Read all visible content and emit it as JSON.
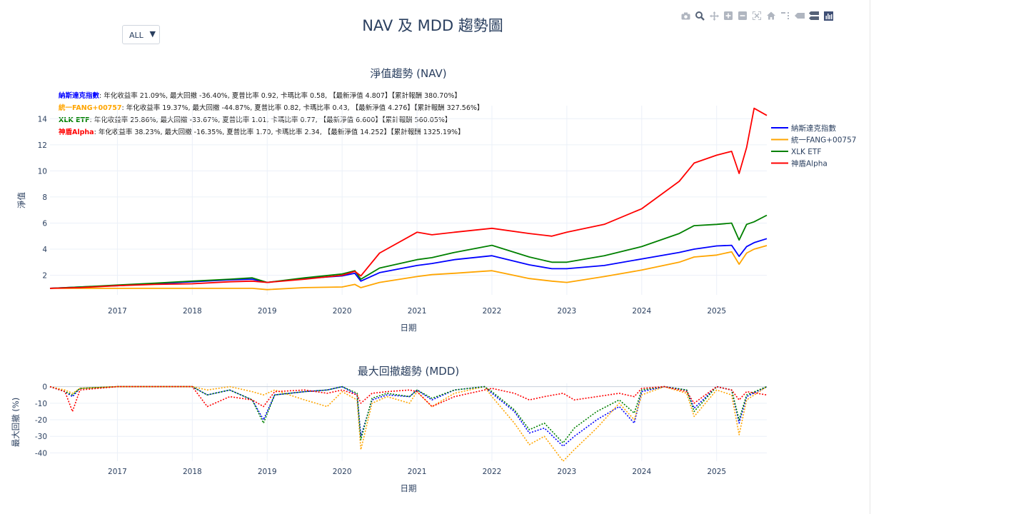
{
  "page": {
    "title": "NAV 及 MDD 趨勢圖",
    "dropdown_value": "ALL",
    "dropdown_arrow": "▼"
  },
  "toolbar": {
    "icons": [
      "camera-icon",
      "zoom-icon",
      "pan-icon",
      "zoom-in-icon",
      "zoom-out-icon",
      "autoscale-icon",
      "reset-axes-icon",
      "spike-lines-icon",
      "hover-closest-icon",
      "hover-compare-icon",
      "plotly-logo-icon"
    ]
  },
  "stats": [
    {
      "name": "納斯達克指數",
      "color": "#0000ff",
      "text": ": 年化收益率 21.09%, 最大回撤 -36.40%, 夏普比率 0.92, 卡瑪比率 0.58, 【最新淨值 4.807】【累計報酬 380.70%】"
    },
    {
      "name": "統一FANG+00757",
      "color": "#ffa500",
      "text": ": 年化收益率 19.37%, 最大回撤 -44.87%, 夏普比率 0.82, 卡瑪比率 0.43, 【最新淨值 4.276】【累計報酬 327.56%】"
    },
    {
      "name": "XLK ETF",
      "color": "#008000",
      "text": ": 年化收益率 25.86%, 最大回撤 -33.67%, 夏普比率 1.01, 卡瑪比率 0.77, 【最新淨值 6.600】【累計報酬 560.05%】"
    },
    {
      "name": "神盾Alpha",
      "color": "#ff0000",
      "text": ": 年化收益率 38.23%, 最大回撤 -16.35%, 夏普比率 1.70, 卡瑪比率 2.34, 【最新淨值 14.252】【累計報酬 1325.19%】"
    }
  ],
  "chart_data": [
    {
      "type": "line",
      "title": "淨值趨勢 (NAV)",
      "xlabel": "日期",
      "ylabel": "淨值",
      "xlim": [
        2016.1,
        2025.67
      ],
      "ylim": [
        0.5,
        15
      ],
      "x_ticks": [
        "2017",
        "2018",
        "2019",
        "2020",
        "2021",
        "2022",
        "2023",
        "2024",
        "2025"
      ],
      "y_ticks": [
        2,
        4,
        6,
        8,
        10,
        12,
        14
      ],
      "grid": true,
      "legend_position": "right",
      "x": [
        2016.1,
        2016.5,
        2017.0,
        2017.5,
        2018.0,
        2018.5,
        2018.8,
        2019.0,
        2019.5,
        2020.0,
        2020.17,
        2020.25,
        2020.5,
        2021.0,
        2021.2,
        2021.5,
        2022.0,
        2022.5,
        2022.8,
        2023.0,
        2023.5,
        2024.0,
        2024.5,
        2024.7,
        2025.0,
        2025.2,
        2025.3,
        2025.4,
        2025.5,
        2025.67
      ],
      "series": [
        {
          "name": "納斯達克指數",
          "color": "#0000ff",
          "values": [
            1.0,
            1.1,
            1.2,
            1.35,
            1.5,
            1.65,
            1.7,
            1.45,
            1.75,
            1.95,
            2.15,
            1.55,
            2.2,
            2.75,
            2.9,
            3.2,
            3.5,
            2.8,
            2.5,
            2.5,
            2.75,
            3.25,
            3.75,
            4.0,
            4.25,
            4.3,
            3.45,
            4.2,
            4.5,
            4.807
          ]
        },
        {
          "name": "統一FANG+00757",
          "color": "#ffa500",
          "values": [
            1.0,
            1.0,
            1.0,
            1.0,
            1.0,
            1.0,
            1.0,
            0.9,
            1.05,
            1.1,
            1.3,
            1.05,
            1.45,
            1.9,
            2.05,
            2.15,
            2.35,
            1.75,
            1.55,
            1.45,
            1.9,
            2.4,
            3.0,
            3.4,
            3.55,
            3.8,
            2.85,
            3.7,
            4.0,
            4.276
          ]
        },
        {
          "name": "XLK ETF",
          "color": "#008000",
          "values": [
            1.0,
            1.1,
            1.25,
            1.4,
            1.55,
            1.7,
            1.8,
            1.45,
            1.8,
            2.1,
            2.35,
            1.7,
            2.55,
            3.2,
            3.35,
            3.75,
            4.3,
            3.4,
            3.0,
            3.0,
            3.5,
            4.2,
            5.2,
            5.8,
            5.9,
            6.0,
            4.7,
            5.9,
            6.1,
            6.6
          ]
        },
        {
          "name": "神盾Alpha",
          "color": "#ff0000",
          "values": [
            1.0,
            1.05,
            1.2,
            1.3,
            1.35,
            1.5,
            1.55,
            1.45,
            1.7,
            2.0,
            2.3,
            1.95,
            3.7,
            5.3,
            5.1,
            5.3,
            5.6,
            5.2,
            5.0,
            5.3,
            5.9,
            7.1,
            9.2,
            10.6,
            11.2,
            11.5,
            9.8,
            11.8,
            14.8,
            14.252
          ]
        }
      ]
    },
    {
      "type": "line",
      "title": "最大回撤趨勢 (MDD)",
      "xlabel": "日期",
      "ylabel": "最大回撤 (%)",
      "xlim": [
        2016.1,
        2025.67
      ],
      "ylim": [
        -45,
        2
      ],
      "x_ticks": [
        "2017",
        "2018",
        "2019",
        "2020",
        "2021",
        "2022",
        "2023",
        "2024",
        "2025"
      ],
      "y_ticks": [
        0,
        -10,
        -20,
        -30,
        -40
      ],
      "grid": true,
      "line_style": "dotted",
      "x": [
        2016.1,
        2016.3,
        2016.4,
        2016.5,
        2017.0,
        2017.5,
        2018.0,
        2018.2,
        2018.5,
        2018.8,
        2018.95,
        2019.1,
        2019.5,
        2019.8,
        2020.0,
        2020.2,
        2020.25,
        2020.4,
        2020.6,
        2020.9,
        2021.0,
        2021.2,
        2021.5,
        2021.9,
        2022.0,
        2022.3,
        2022.5,
        2022.7,
        2022.95,
        2023.1,
        2023.4,
        2023.7,
        2023.9,
        2024.0,
        2024.3,
        2024.6,
        2024.7,
        2025.0,
        2025.2,
        2025.3,
        2025.4,
        2025.67
      ],
      "series": [
        {
          "name": "納斯達克指數",
          "color": "#0000ff",
          "values": [
            0,
            -3,
            -6,
            -1,
            0,
            0,
            0,
            -5,
            -2,
            -8,
            -20,
            -5,
            -3,
            -2,
            0,
            -5,
            -30,
            -8,
            -5,
            -6,
            -2,
            -8,
            -2,
            0,
            -4,
            -15,
            -28,
            -25,
            -36,
            -30,
            -20,
            -12,
            -22,
            -3,
            0,
            -2,
            -13,
            0,
            -2,
            -22,
            -6,
            0
          ]
        },
        {
          "name": "統一FANG+00757",
          "color": "#ffa500",
          "values": [
            0,
            -2,
            -4,
            -1,
            0,
            0,
            0,
            -2,
            0,
            -3,
            -5,
            -2,
            -8,
            -12,
            -3,
            -8,
            -38,
            -10,
            -6,
            -10,
            -3,
            -12,
            -4,
            0,
            -6,
            -22,
            -35,
            -30,
            -45,
            -38,
            -25,
            -10,
            -20,
            -5,
            0,
            -4,
            -18,
            -2,
            -5,
            -29,
            -8,
            0
          ]
        },
        {
          "name": "XLK ETF",
          "color": "#008000",
          "values": [
            0,
            -3,
            -5,
            -1,
            0,
            0,
            0,
            -5,
            -2,
            -8,
            -22,
            -5,
            -3,
            -2,
            0,
            -4,
            -32,
            -7,
            -4,
            -6,
            -2,
            -7,
            -2,
            0,
            -3,
            -14,
            -26,
            -22,
            -34,
            -25,
            -15,
            -8,
            -16,
            -2,
            0,
            -2,
            -15,
            0,
            -2,
            -20,
            -5,
            0
          ]
        },
        {
          "name": "神盾Alpha",
          "color": "#ff0000",
          "values": [
            0,
            -3,
            -15,
            -2,
            0,
            0,
            0,
            -12,
            -6,
            -8,
            -12,
            -3,
            -2,
            -4,
            -2,
            -5,
            -10,
            -4,
            -3,
            -2,
            -3,
            -12,
            -6,
            -2,
            -1,
            -4,
            -8,
            -6,
            -4,
            -8,
            -6,
            -4,
            -6,
            -1,
            0,
            -3,
            -10,
            0,
            -2,
            -8,
            -3,
            -5
          ]
        }
      ]
    }
  ]
}
